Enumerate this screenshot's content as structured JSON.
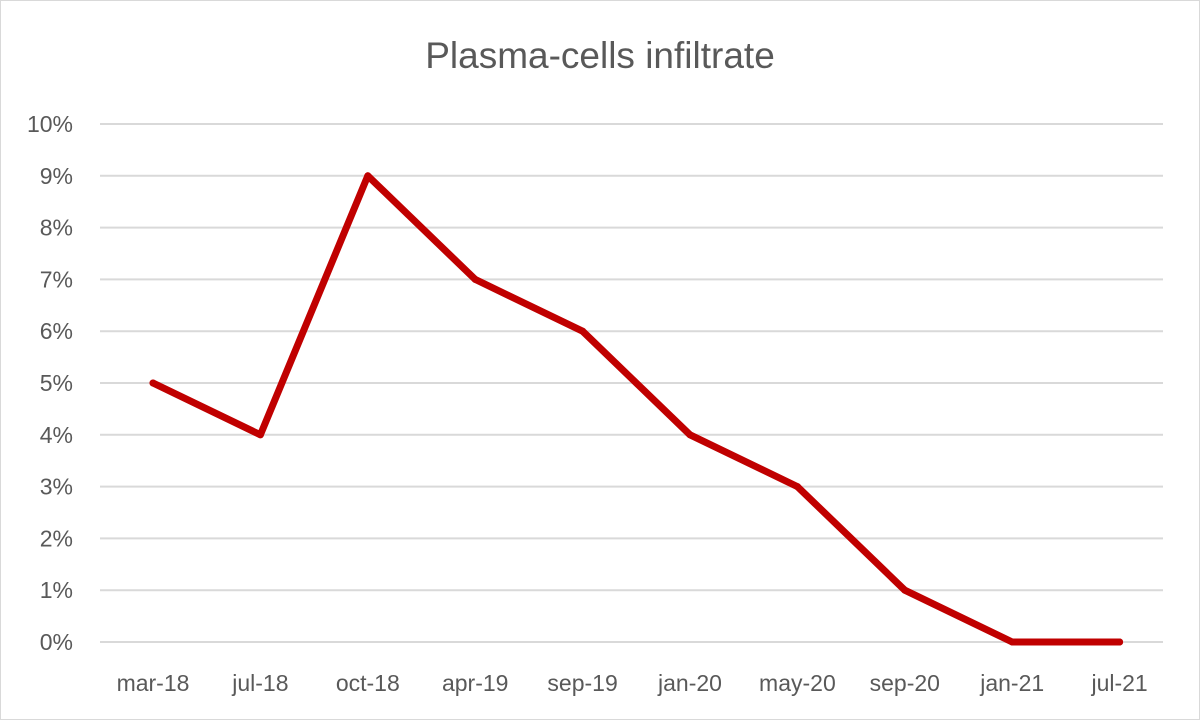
{
  "chart_data": {
    "type": "line",
    "title": "Plasma-cells infiltrate",
    "xlabel": "",
    "ylabel": "",
    "categories": [
      "mar-18",
      "jul-18",
      "oct-18",
      "apr-19",
      "sep-19",
      "jan-20",
      "may-20",
      "sep-20",
      "jan-21",
      "jul-21"
    ],
    "series": [
      {
        "values": [
          5,
          4,
          9,
          7,
          6,
          4,
          3,
          1,
          0,
          0
        ]
      }
    ],
    "y_ticks": [
      "0%",
      "1%",
      "2%",
      "3%",
      "4%",
      "5%",
      "6%",
      "7%",
      "8%",
      "9%",
      "10%"
    ],
    "ylim": [
      0,
      10
    ],
    "y_unit": "percent",
    "grid": true,
    "legend": "none",
    "line_color": "#c00000"
  }
}
